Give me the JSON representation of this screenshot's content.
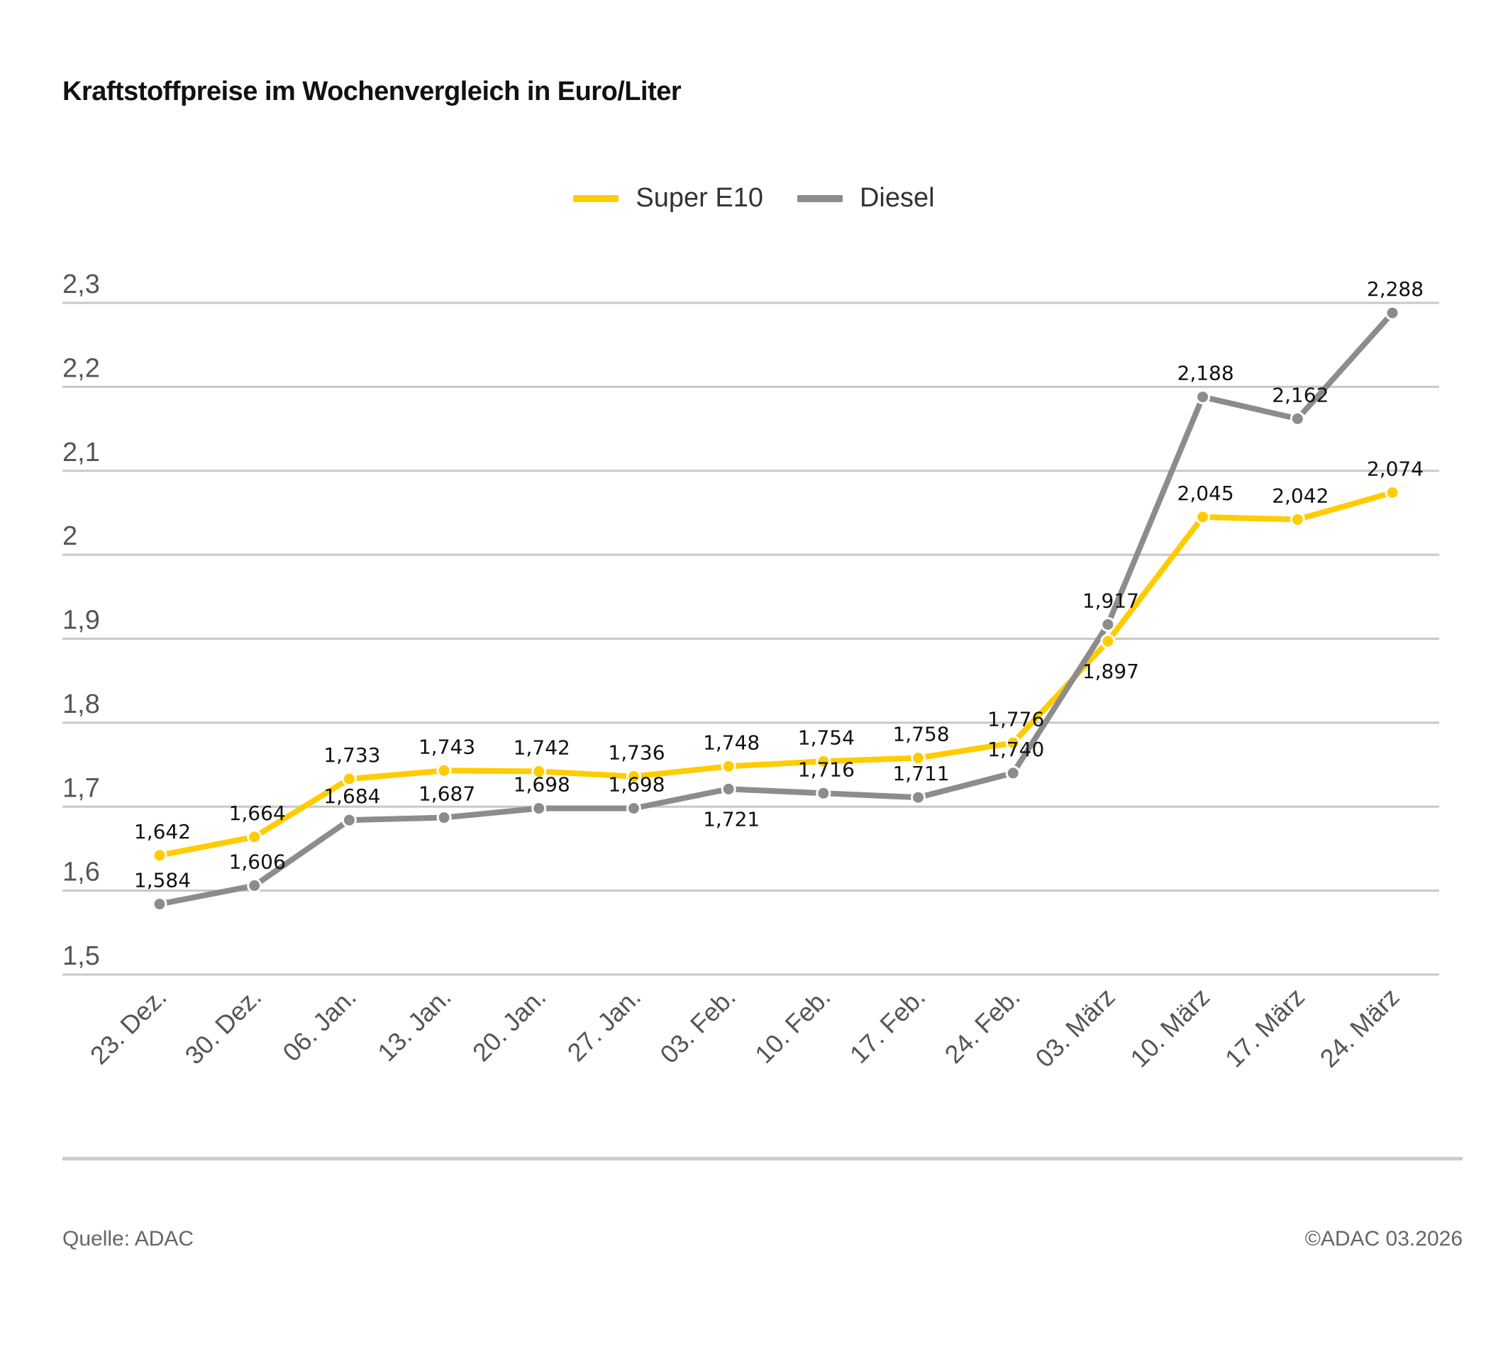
{
  "chart_data": {
    "type": "line",
    "title": "Kraftstoffpreise im Wochenvergleich in Euro/Liter",
    "categories": [
      "23. Dez.",
      "30. Dez.",
      "06. Jan.",
      "13. Jan.",
      "20. Jan.",
      "27. Jan.",
      "03. Feb.",
      "10. Feb.",
      "17. Feb.",
      "24. Feb.",
      "03. März",
      "10. März",
      "17. März",
      "24. März"
    ],
    "series": [
      {
        "name": "Super E10",
        "color": "#FFCC00",
        "values": [
          1.642,
          1.664,
          1.733,
          1.743,
          1.742,
          1.736,
          1.748,
          1.754,
          1.758,
          1.776,
          1.897,
          2.045,
          2.042,
          2.074
        ],
        "labels": [
          "1,642",
          "1,664",
          "1,733",
          "1,743",
          "1,742",
          "1,736",
          "1,748",
          "1,754",
          "1,758",
          "1,776",
          "1,897",
          "2,045",
          "2,042",
          "2,074"
        ]
      },
      {
        "name": "Diesel",
        "color": "#8C8C8C",
        "values": [
          1.584,
          1.606,
          1.684,
          1.687,
          1.698,
          1.698,
          1.721,
          1.716,
          1.711,
          1.74,
          1.917,
          2.188,
          2.162,
          2.288
        ],
        "labels": [
          "1,584",
          "1,606",
          "1,684",
          "1,687",
          "1,698",
          "1,698",
          "1,721",
          "1,716",
          "1,711",
          "1,740",
          "1,917",
          "2,188",
          "2,162",
          "2,288"
        ]
      }
    ],
    "yticks": [
      "1,5",
      "1,6",
      "1,7",
      "1,8",
      "1,9",
      "2",
      "2,1",
      "2,2",
      "2,3"
    ],
    "ylim": [
      1.5,
      2.3
    ],
    "grid": true,
    "legend": "top-center"
  },
  "footer": {
    "source": "Quelle: ADAC",
    "copyright": "©ADAC 03.2026"
  }
}
